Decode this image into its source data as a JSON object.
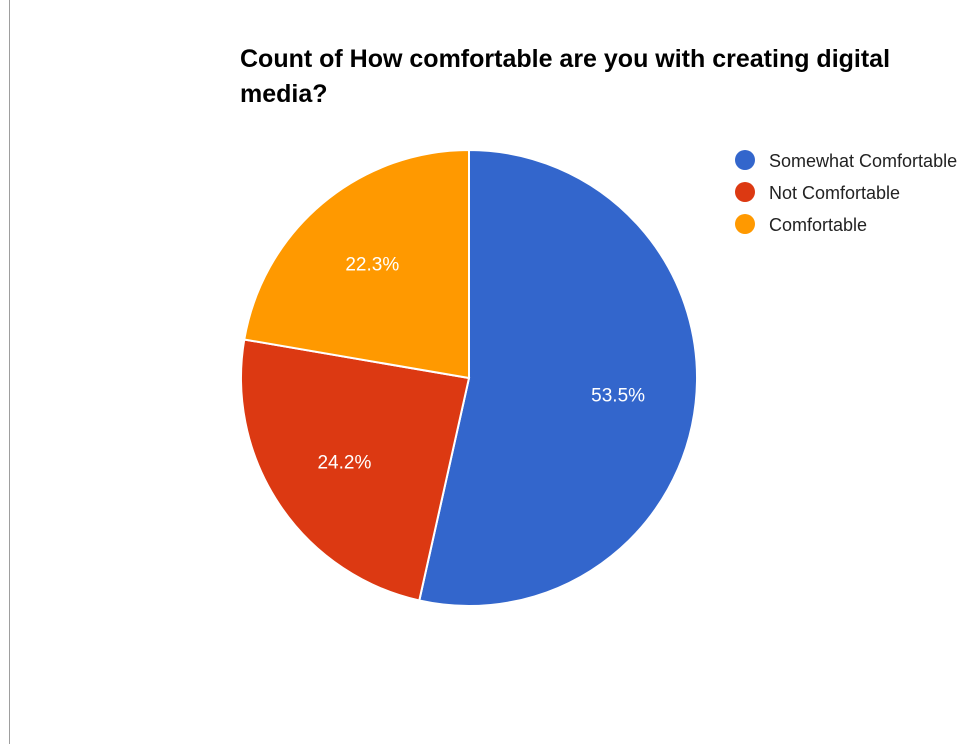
{
  "chart_data": {
    "type": "pie",
    "title": "Count of How comfortable are you with creating digital media?",
    "slices": [
      {
        "label": "Somewhat Comfortable",
        "value": 53.5,
        "display": "53.5%",
        "color": "#3366cc"
      },
      {
        "label": "Not Comfortable",
        "value": 24.2,
        "display": "24.2%",
        "color": "#dc3912"
      },
      {
        "label": "Comfortable",
        "value": 22.3,
        "display": "22.3%",
        "color": "#ff9900"
      }
    ],
    "legend_position": "right",
    "start_angle": "12 o'clock, clockwise"
  }
}
